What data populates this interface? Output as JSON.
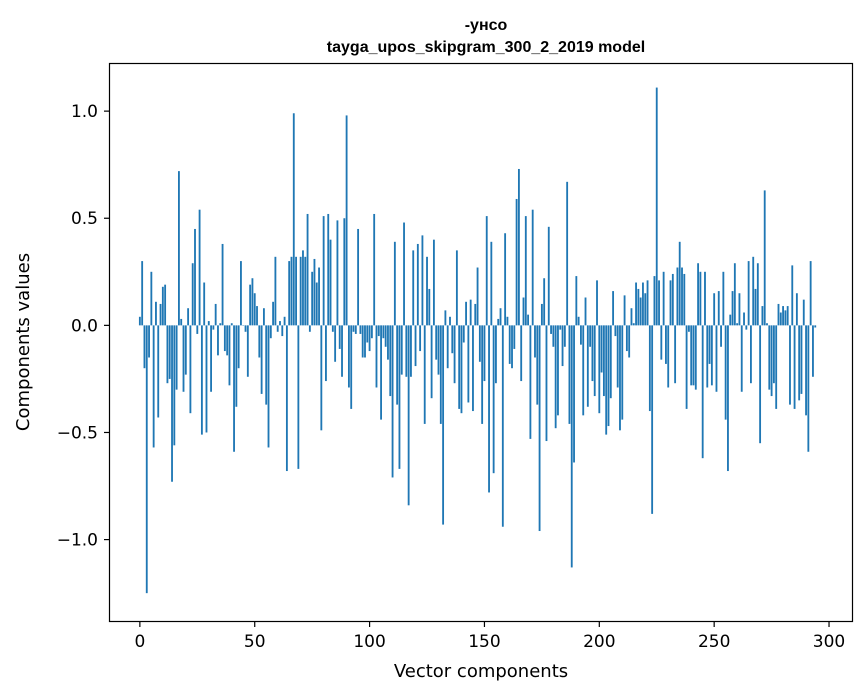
{
  "chart_data": {
    "type": "bar",
    "title": [
      "-унсо",
      "tayga_upos_skipgram_300_2_2019 model"
    ],
    "xlabel": "Vector components",
    "ylabel": "Components values",
    "xlim": [
      -13,
      310
    ],
    "ylim": [
      -1.38,
      1.22
    ],
    "xticks": [
      0,
      50,
      100,
      150,
      200,
      250,
      300
    ],
    "xtick_labels": [
      "0",
      "50",
      "100",
      "150",
      "200",
      "250",
      "300"
    ],
    "yticks": [
      -1.0,
      -0.5,
      0.0,
      0.5,
      1.0
    ],
    "ytick_labels": [
      "−1.0",
      "−0.5",
      "0.0",
      "0.5",
      "1.0"
    ],
    "bar_color": "#1f77b4",
    "values": [
      0.04,
      0.3,
      -0.2,
      -1.25,
      -0.15,
      0.25,
      -0.57,
      0.11,
      -0.43,
      0.1,
      0.18,
      0.19,
      -0.27,
      -0.25,
      -0.73,
      -0.56,
      -0.3,
      0.72,
      0.03,
      -0.31,
      -0.23,
      0.08,
      -0.41,
      0.29,
      0.45,
      -0.04,
      0.54,
      -0.51,
      0.2,
      -0.5,
      0.02,
      -0.31,
      -0.02,
      0.1,
      -0.14,
      0.01,
      0.38,
      -0.12,
      -0.14,
      -0.28,
      0.01,
      -0.59,
      -0.38,
      -0.2,
      0.3,
      0.0,
      -0.03,
      -0.24,
      0.19,
      0.22,
      0.15,
      0.09,
      -0.15,
      -0.32,
      0.08,
      -0.37,
      -0.57,
      -0.06,
      0.11,
      0.32,
      -0.03,
      0.02,
      -0.05,
      0.04,
      -0.68,
      0.3,
      0.32,
      0.99,
      0.32,
      -0.67,
      0.32,
      0.35,
      0.32,
      0.52,
      -0.03,
      0.25,
      0.31,
      0.2,
      0.27,
      -0.49,
      0.51,
      -0.26,
      0.52,
      0.4,
      -0.03,
      -0.17,
      0.49,
      -0.11,
      -0.24,
      0.5,
      0.98,
      -0.29,
      -0.39,
      -0.03,
      -0.04,
      0.45,
      -0.04,
      -0.15,
      -0.15,
      -0.08,
      -0.12,
      -0.06,
      0.52,
      -0.29,
      -0.05,
      -0.44,
      -0.06,
      -0.1,
      -0.16,
      -0.33,
      -0.71,
      0.39,
      -0.37,
      -0.67,
      -0.23,
      0.48,
      -0.24,
      -0.84,
      -0.24,
      0.35,
      -0.19,
      0.38,
      -0.12,
      0.42,
      -0.46,
      0.32,
      0.17,
      -0.34,
      0.4,
      -0.16,
      -0.23,
      -0.46,
      -0.93,
      0.07,
      -0.2,
      0.04,
      -0.13,
      -0.27,
      0.35,
      -0.39,
      -0.41,
      -0.08,
      0.11,
      -0.36,
      0.12,
      -0.4,
      0.1,
      0.27,
      -0.17,
      -0.46,
      -0.26,
      0.51,
      -0.78,
      0.39,
      -0.69,
      -0.27,
      0.03,
      0.08,
      -0.94,
      0.43,
      0.04,
      -0.18,
      -0.2,
      -0.11,
      0.59,
      0.73,
      -0.26,
      0.13,
      0.51,
      0.05,
      -0.53,
      0.54,
      -0.15,
      -0.37,
      -0.96,
      0.1,
      0.22,
      -0.54,
      0.46,
      -0.04,
      -0.1,
      -0.48,
      -0.42,
      -0.02,
      -0.19,
      -0.1,
      0.67,
      -0.46,
      -1.13,
      -0.64,
      0.23,
      0.04,
      -0.09,
      -0.42,
      0.13,
      -0.38,
      -0.1,
      -0.26,
      -0.33,
      0.21,
      -0.41,
      -0.22,
      -0.33,
      -0.51,
      -0.47,
      -0.34,
      0.16,
      -0.05,
      -0.29,
      -0.49,
      -0.44,
      0.14,
      -0.12,
      -0.15,
      0.08,
      0.01,
      0.2,
      0.17,
      0.13,
      0.2,
      0.15,
      0.21,
      -0.4,
      -0.88,
      0.23,
      1.11,
      0.21,
      -0.16,
      0.25,
      -0.18,
      -0.29,
      0.21,
      0.24,
      -0.27,
      0.27,
      0.39,
      0.27,
      0.24,
      -0.39,
      -0.03,
      -0.28,
      -0.28,
      -0.3,
      0.29,
      0.25,
      -0.62,
      0.25,
      -0.29,
      -0.18,
      -0.28,
      0.15,
      -0.31,
      0.16,
      -0.1,
      0.25,
      -0.44,
      -0.68,
      0.05,
      0.16,
      0.29,
      0.01,
      0.15,
      -0.31,
      0.06,
      -0.02,
      0.3,
      -0.27,
      0.32,
      0.17,
      0.29,
      -0.55,
      0.09,
      0.63,
      0.01,
      -0.3,
      -0.33,
      -0.27,
      -0.39,
      0.1,
      0.06,
      0.09,
      0.07,
      0.09,
      -0.37,
      0.28,
      -0.39,
      0.15,
      -0.35,
      -0.32,
      0.12,
      -0.42,
      -0.59,
      0.3,
      -0.24,
      -0.01
    ]
  }
}
